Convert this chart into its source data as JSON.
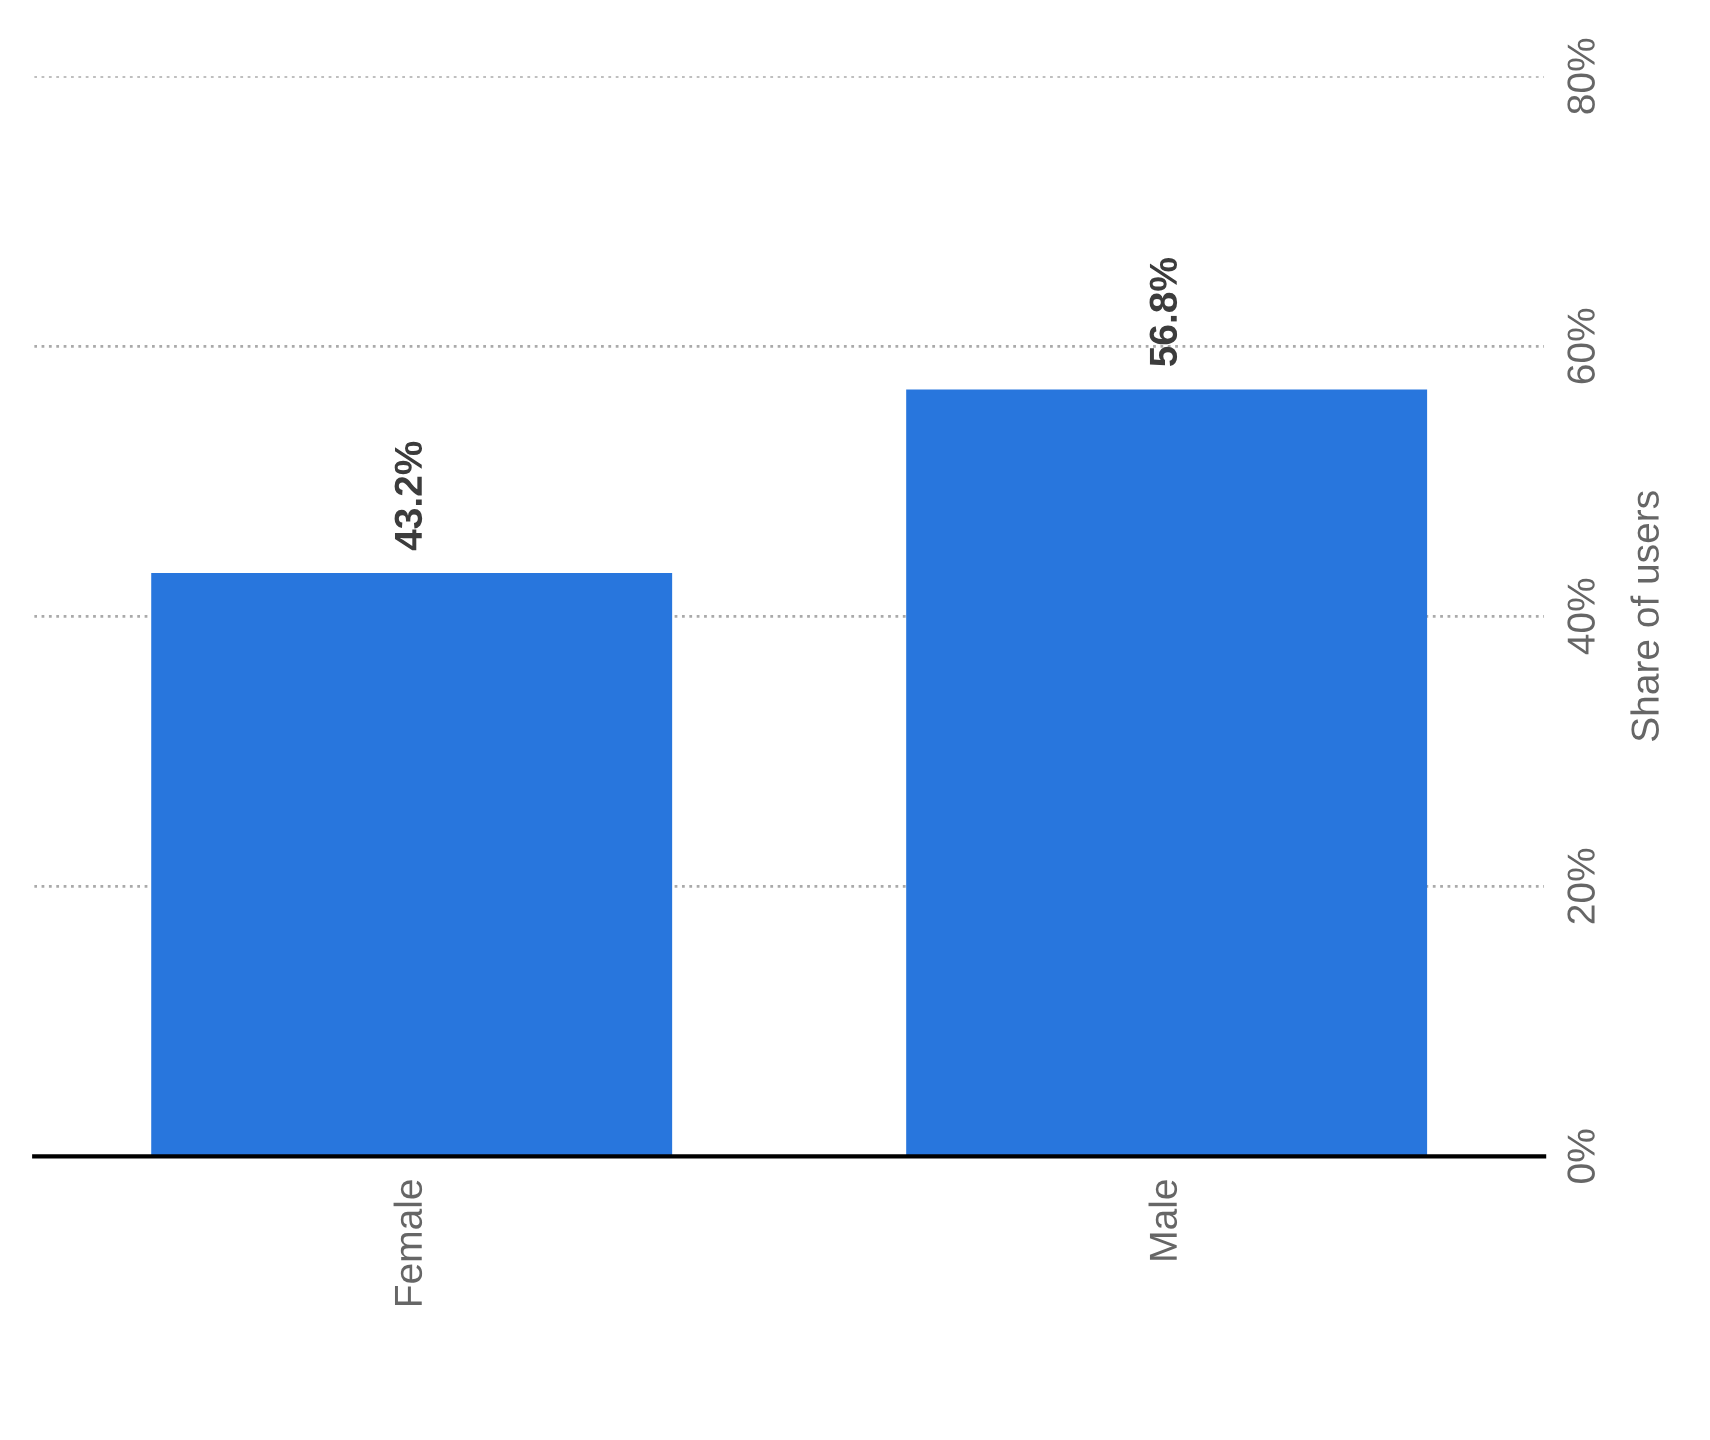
{
  "chart_data": {
    "type": "bar",
    "ylabel": "Share of users",
    "categories": [
      "Female",
      "Male"
    ],
    "values": [
      43.2,
      56.8
    ],
    "color": "#2876dd",
    "value_labels": [
      "43.2%",
      "56.8%"
    ],
    "ylim": [
      0,
      80
    ],
    "yticks": [
      {
        "value": 0,
        "label": "0%"
      },
      {
        "value": 20,
        "label": "20%"
      },
      {
        "value": 40,
        "label": "40%"
      },
      {
        "value": 60,
        "label": "60%"
      },
      {
        "value": 80,
        "label": "80%"
      }
    ],
    "grid": "y",
    "legend": false
  }
}
